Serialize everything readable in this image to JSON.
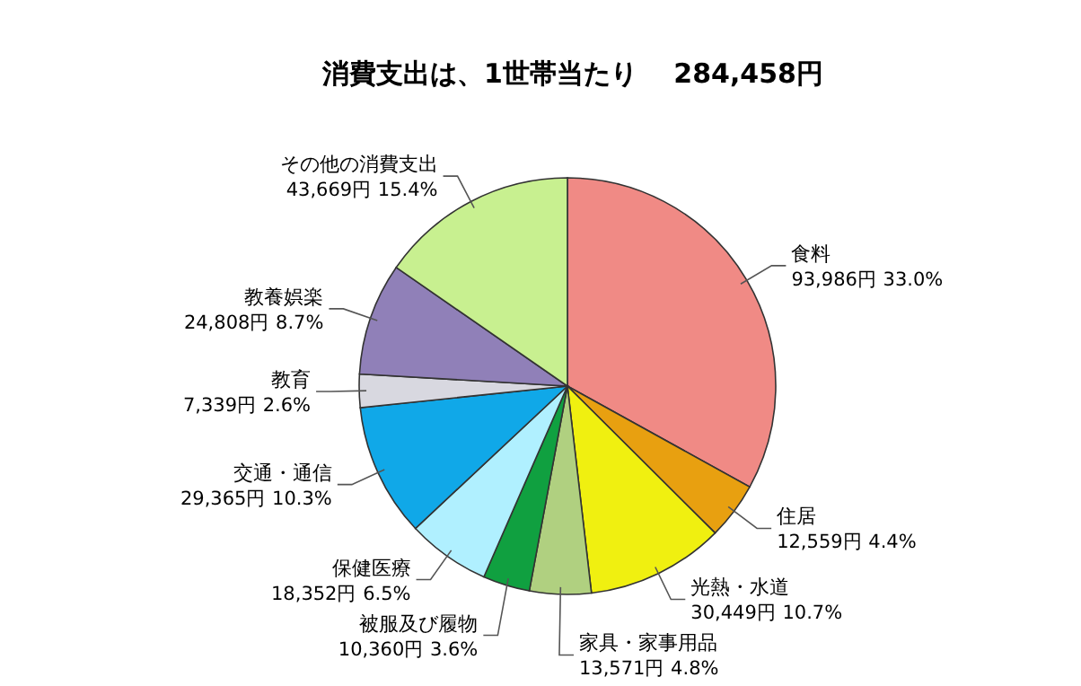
{
  "chart_data": {
    "type": "pie",
    "title": "消費支出は、1世帯当たり　 284,458円",
    "categories": [
      "食料",
      "住居",
      "光熱・水道",
      "家具・家事用品",
      "被服及び履物",
      "保健医療",
      "交通・通信",
      "教育",
      "教養娯楽",
      "その他の消費支出"
    ],
    "values": [
      93986,
      12559,
      30449,
      13571,
      10360,
      18352,
      29365,
      7339,
      24808,
      43669
    ],
    "value_labels": [
      "93,986円 33.0%",
      "12,559円 4.4%",
      "30,449円 10.7%",
      "13,571円 4.8%",
      "10,360円 3.6%",
      "18,352円 6.5%",
      "29,365円 10.3%",
      "7,339円 2.6%",
      "24,808円 8.7%",
      "43,669円 15.4%"
    ],
    "colors": [
      "#f08a85",
      "#e8a010",
      "#f0f010",
      "#b0d080",
      "#10a040",
      "#b0f0ff",
      "#10a8e8",
      "#d8d8e0",
      "#9080b8",
      "#c8f090"
    ]
  }
}
